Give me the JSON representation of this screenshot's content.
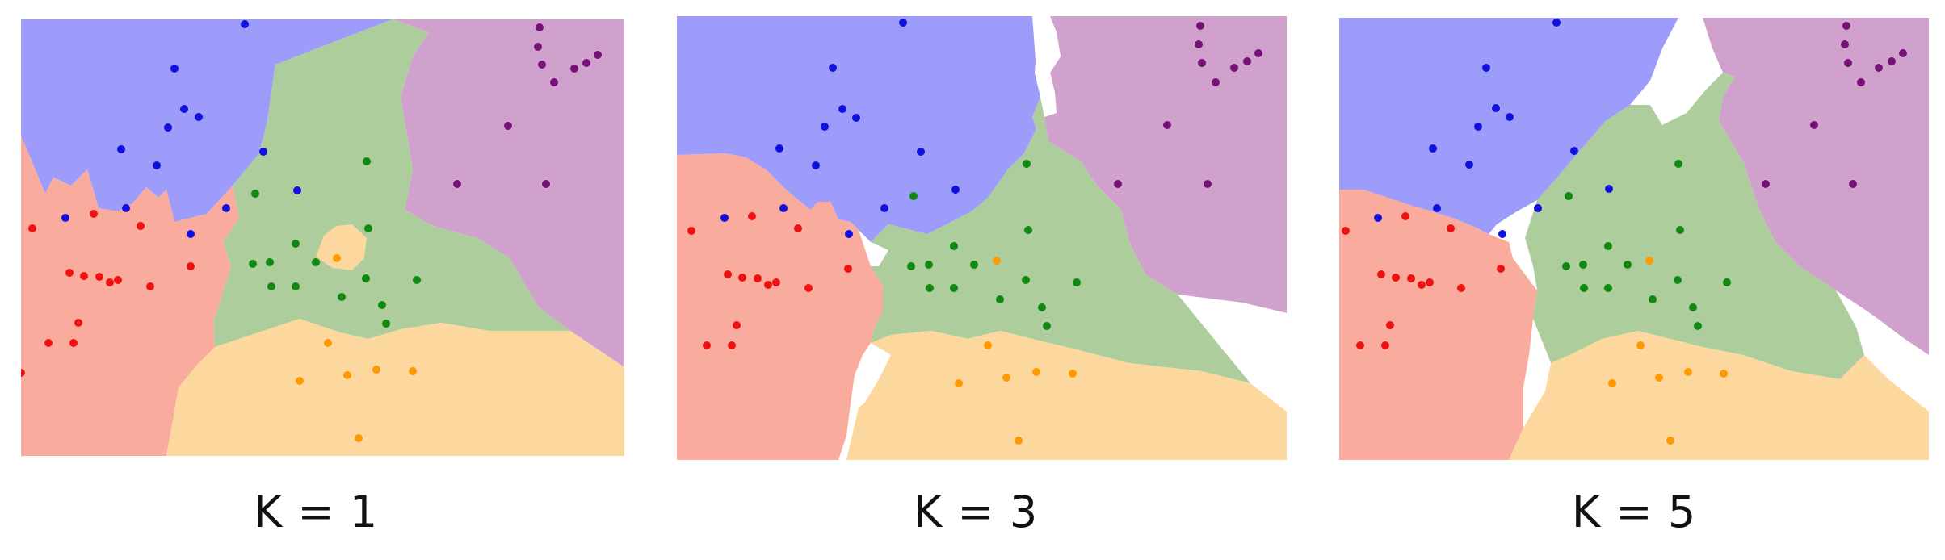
{
  "colors": {
    "red": "#F9AB9D",
    "blue": "#9E9CFB",
    "green": "#ADCD9D",
    "orange": "#FDD89E",
    "purple": "#D1A1CE",
    "background": "#FFFFFF",
    "point_red": "#EE1111",
    "point_blue": "#1111DD",
    "point_green": "#118811",
    "point_orange": "#FF9900",
    "point_purple": "#771177"
  },
  "panels": [
    {
      "k": 1,
      "label": "K = 1"
    },
    {
      "k": 3,
      "label": "K = 3"
    },
    {
      "k": 5,
      "label": "K = 5"
    }
  ]
}
